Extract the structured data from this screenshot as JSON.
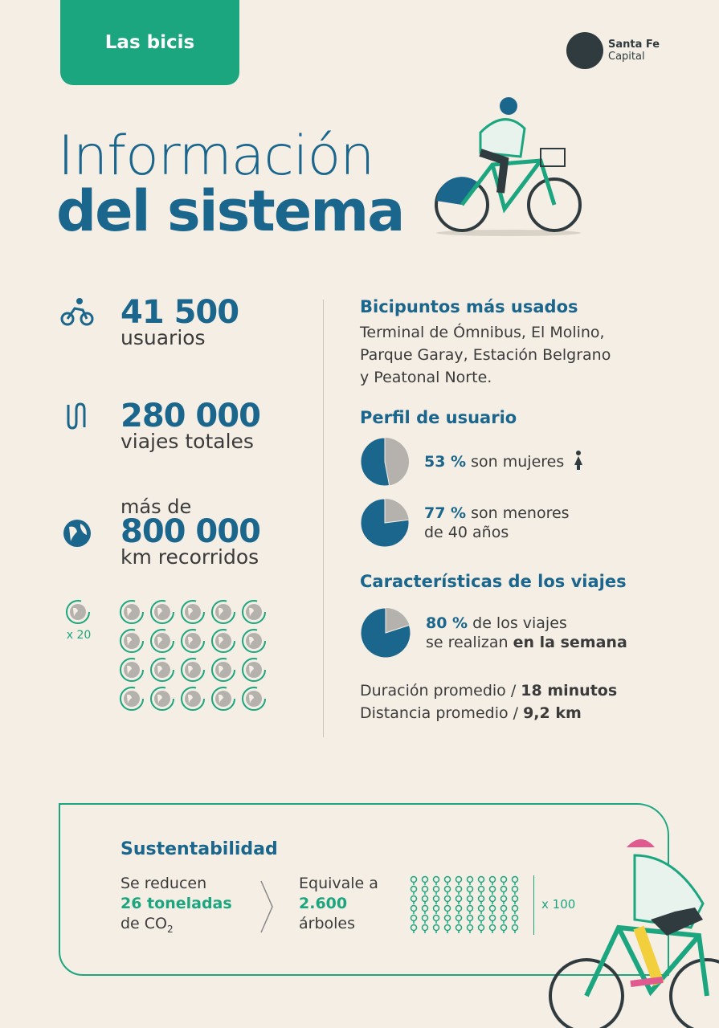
{
  "tag": "Las bicis",
  "logo": {
    "line1": "Santa Fe",
    "line2": "Capital"
  },
  "title": {
    "line1": "Información",
    "line2": "del sistema"
  },
  "stats": [
    {
      "icon": "bicycle-icon",
      "value": "41 500",
      "label": "usuarios"
    },
    {
      "icon": "route-icon",
      "value": "280 000",
      "label": "viajes totales"
    },
    {
      "icon": "globe-icon",
      "prefix": "más de",
      "value": "800 000",
      "label": "km recorridos"
    }
  ],
  "globes": {
    "multiplier": "x 20",
    "count": 20
  },
  "bicipuntos": {
    "heading": "Bicipuntos más usados",
    "text": [
      "Terminal de Ómnibus, El Molino,",
      "Parque Garay, Estación Belgrano",
      "y Peatonal Norte."
    ]
  },
  "perfil": {
    "heading": "Perfil de usuario",
    "items": [
      {
        "pct": 53,
        "pct_label": "53 %",
        "text1": " son mujeres",
        "text2": "",
        "icon": "woman-icon"
      },
      {
        "pct": 77,
        "pct_label": "77 %",
        "text1": " son menores",
        "text2": "de 40 años"
      }
    ]
  },
  "viajes": {
    "heading": "Características de los viajes",
    "pct": 80,
    "pct_label": "80 %",
    "text1": " de los viajes",
    "text2a": "se realizan ",
    "text2b": "en la semana",
    "dur_label": "Duración promedio / ",
    "dur_value": "18 minutos",
    "dist_label": "Distancia promedio / ",
    "dist_value": "9,2 km"
  },
  "sust": {
    "heading": "Sustentabilidad",
    "a1": "Se reducen",
    "a2": "26 toneladas",
    "a3": "de CO",
    "a3sub": "2",
    "b1": "Equivale a",
    "b2": "2.600",
    "b3": "árboles",
    "multiplier": "x 100",
    "trees": 60
  },
  "colors": {
    "blue": "#1b668c",
    "green": "#1ba680",
    "gray": "#b5b2ad",
    "bg": "#f4eee5"
  }
}
